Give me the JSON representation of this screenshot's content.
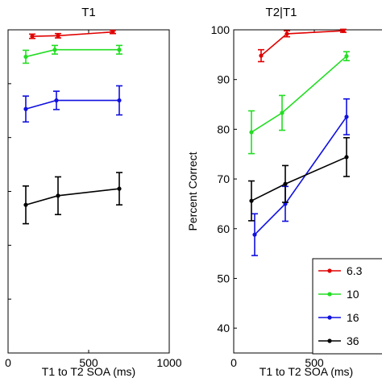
{
  "chart_data": [
    {
      "type": "line",
      "title": "T1",
      "xlabel": "T1 to T2 SOA (ms)",
      "ylabel": "",
      "xlim": [
        0,
        1000
      ],
      "ylim": [
        40,
        100
      ],
      "xticks": [
        0,
        500,
        1000
      ],
      "yticks": [],
      "grid": false,
      "series": [
        {
          "color": "#e00000",
          "x": [
            150,
            310,
            650
          ],
          "y": [
            98.8,
            98.9,
            99.6
          ],
          "err": [
            0.4,
            0.4,
            0.3
          ]
        },
        {
          "color": "#22dd22",
          "x": [
            110,
            290,
            690
          ],
          "y": [
            95.0,
            96.3,
            96.3
          ],
          "err": [
            1.2,
            0.8,
            0.8
          ]
        },
        {
          "color": "#1010e0",
          "x": [
            110,
            300,
            690
          ],
          "y": [
            85.3,
            86.9,
            86.9
          ],
          "err": [
            2.4,
            1.7,
            2.7
          ]
        },
        {
          "color": "#000000",
          "x": [
            110,
            310,
            690
          ],
          "y": [
            67.5,
            69.2,
            70.5
          ],
          "err": [
            3.5,
            3.5,
            3.0
          ]
        }
      ]
    },
    {
      "type": "line",
      "title": "T2|T1",
      "xlabel": "T1 to T2 SOA (ms)",
      "ylabel": "Percent Correct",
      "xlim": [
        0,
        1000
      ],
      "ylim": [
        35,
        100
      ],
      "xticks": [
        0,
        500
      ],
      "yticks": [
        40,
        50,
        60,
        70,
        80,
        90,
        100
      ],
      "grid": false,
      "legend": {
        "placement": "bottom-right",
        "entries": [
          {
            "label": "6.3",
            "color": "#e00000"
          },
          {
            "label": "10",
            "color": "#22dd22"
          },
          {
            "label": "16",
            "color": "#1010e0"
          },
          {
            "label": "36",
            "color": "#000000"
          }
        ]
      },
      "series": [
        {
          "name": "6.3",
          "color": "#e00000",
          "x": [
            170,
            330,
            680
          ],
          "y": [
            94.8,
            99.2,
            99.8
          ],
          "err": [
            1.2,
            0.6,
            0.3
          ]
        },
        {
          "name": "10",
          "color": "#22dd22",
          "x": [
            110,
            300,
            700
          ],
          "y": [
            79.4,
            83.3,
            94.7
          ],
          "err": [
            4.3,
            3.5,
            0.9
          ]
        },
        {
          "name": "16",
          "color": "#1010e0",
          "x": [
            130,
            320,
            700
          ],
          "y": [
            58.8,
            65.0,
            82.5
          ],
          "err": [
            4.2,
            3.5,
            3.6
          ]
        },
        {
          "name": "36",
          "color": "#000000",
          "x": [
            110,
            320,
            700
          ],
          "y": [
            65.6,
            69.0,
            74.4
          ],
          "err": [
            4.0,
            3.7,
            3.9
          ]
        }
      ]
    }
  ]
}
